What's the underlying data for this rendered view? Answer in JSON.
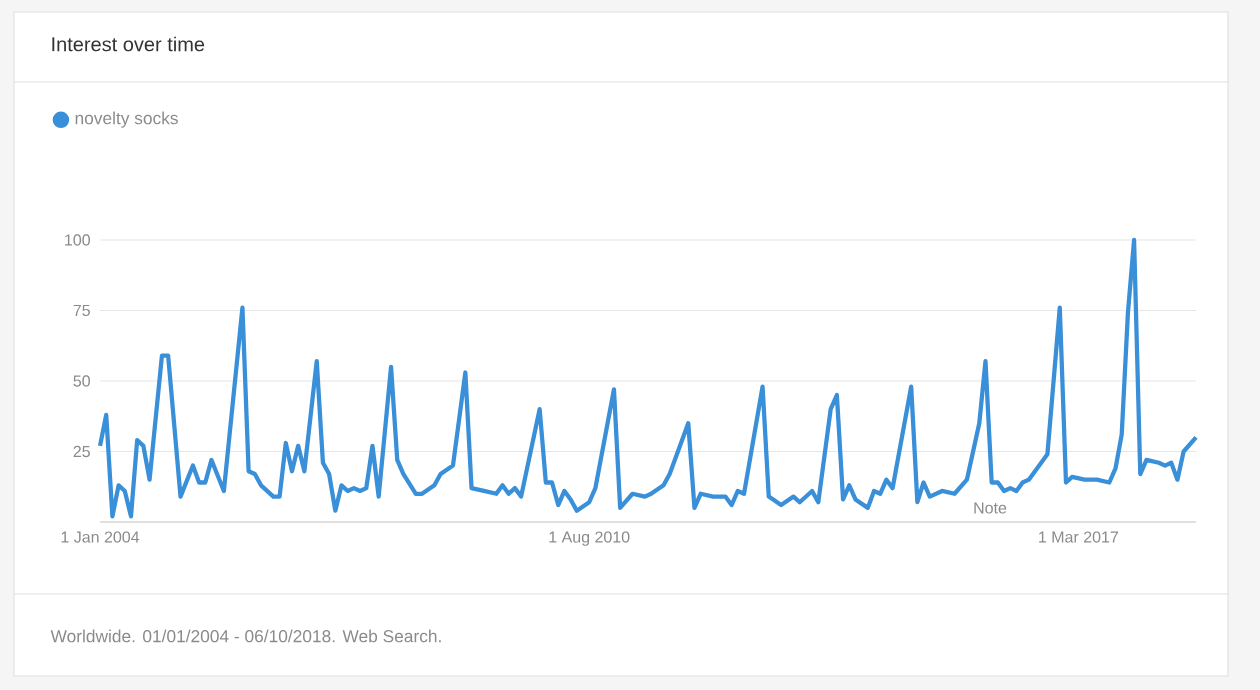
{
  "chart_data": {
    "type": "line",
    "title": "Interest over time",
    "x": [
      "2004-01",
      "2004-02",
      "2004-03",
      "2004-04",
      "2004-05",
      "2004-06",
      "2004-07",
      "2004-08",
      "2004-09",
      "2004-11",
      "2004-12",
      "2005-02",
      "2005-04",
      "2005-05",
      "2005-06",
      "2005-07",
      "2005-09",
      "2005-12",
      "2006-01",
      "2006-02",
      "2006-03",
      "2006-05",
      "2006-06",
      "2006-07",
      "2006-08",
      "2006-09",
      "2006-10",
      "2006-12",
      "2007-01",
      "2007-02",
      "2007-03",
      "2007-04",
      "2007-05",
      "2007-06",
      "2007-07",
      "2007-08",
      "2007-09",
      "2007-10",
      "2007-12",
      "2008-01",
      "2008-02",
      "2008-04",
      "2008-05",
      "2008-07",
      "2008-08",
      "2008-10",
      "2008-12",
      "2009-01",
      "2009-03",
      "2009-05",
      "2009-06",
      "2009-07",
      "2009-08",
      "2009-09",
      "2009-12",
      "2010-01",
      "2010-02",
      "2010-03",
      "2010-04",
      "2010-05",
      "2010-06",
      "2010-08",
      "2010-09",
      "2010-12",
      "2011-01",
      "2011-03",
      "2011-05",
      "2011-06",
      "2011-08",
      "2011-09",
      "2011-12",
      "2012-01",
      "2012-02",
      "2012-04",
      "2012-06",
      "2012-07",
      "2012-08",
      "2012-09",
      "2012-12",
      "2013-01",
      "2013-03",
      "2013-05",
      "2013-06",
      "2013-08",
      "2013-09",
      "2013-11",
      "2013-12",
      "2014-01",
      "2014-02",
      "2014-03",
      "2014-05",
      "2014-06",
      "2014-07",
      "2014-08",
      "2014-09",
      "2014-12",
      "2015-01",
      "2015-02",
      "2015-03",
      "2015-05",
      "2015-07",
      "2015-09",
      "2015-11",
      "2015-12",
      "2016-01",
      "2016-02",
      "2016-03",
      "2016-04",
      "2016-05",
      "2016-06",
      "2016-07",
      "2016-10",
      "2016-11",
      "2016-12",
      "2017-01",
      "2017-02",
      "2017-04",
      "2017-06",
      "2017-08",
      "2017-09",
      "2017-10",
      "2017-11",
      "2017-12",
      "2018-01",
      "2018-02",
      "2018-04",
      "2018-05",
      "2018-06",
      "2018-07",
      "2018-08",
      "2018-10"
    ],
    "series": [
      {
        "name": "novelty socks",
        "color": "#3a8fd9",
        "values": [
          27,
          38,
          2,
          13,
          11,
          2,
          29,
          27,
          15,
          59,
          59,
          9,
          20,
          14,
          14,
          22,
          11,
          76,
          18,
          17,
          13,
          9,
          9,
          28,
          18,
          27,
          18,
          57,
          21,
          17,
          4,
          13,
          11,
          12,
          11,
          12,
          27,
          9,
          55,
          22,
          17,
          10,
          10,
          13,
          17,
          20,
          53,
          12,
          11,
          10,
          13,
          10,
          12,
          9,
          40,
          14,
          14,
          6,
          11,
          8,
          4,
          7,
          12,
          47,
          5,
          10,
          9,
          10,
          13,
          17,
          35,
          5,
          10,
          9,
          9,
          6,
          11,
          10,
          48,
          9,
          6,
          9,
          7,
          11,
          7,
          40,
          45,
          8,
          13,
          8,
          5,
          11,
          10,
          15,
          12,
          48,
          7,
          14,
          9,
          11,
          10,
          15,
          35,
          57,
          14,
          14,
          11,
          12,
          11,
          14,
          15,
          24,
          50,
          76,
          14,
          16,
          15,
          15,
          14,
          19,
          31,
          74,
          100,
          17,
          22,
          21,
          20,
          21,
          15,
          25,
          30
        ]
      }
    ],
    "xlim": [
      "2004-01",
      "2018-10"
    ],
    "xticks": [
      {
        "value": "2004-01",
        "label": "1 Jan 2004"
      },
      {
        "value": "2010-08",
        "label": "1 Aug 2010"
      },
      {
        "value": "2017-03",
        "label": "1 Mar 2017"
      }
    ],
    "ylim": [
      0,
      100
    ],
    "yticks": [
      25,
      50,
      75,
      100
    ],
    "grid": "y",
    "legend": "top left",
    "line_style": "solid",
    "annotations": [
      "Note",
      "Worldwide. 01/01/2004 - 06/10/2018. Web Search."
    ]
  }
}
